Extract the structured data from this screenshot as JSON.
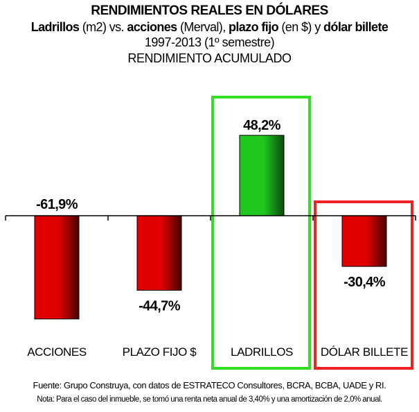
{
  "title": {
    "line1": "RENDIMIENTOS REALES EN DÓLARES",
    "line2_parts": [
      {
        "text": "Ladrillos",
        "bold": true
      },
      {
        "text": " (m2) vs. ",
        "bold": false
      },
      {
        "text": "acciones",
        "bold": true
      },
      {
        "text": " (Merval), ",
        "bold": false
      },
      {
        "text": "plazo fijo",
        "bold": true
      },
      {
        "text": " (en $) y ",
        "bold": false
      },
      {
        "text": "dólar billete",
        "bold": true
      }
    ],
    "line3": "1997-2013 (1º semestre)",
    "line4": "RENDIMIENTO ACUMULADO"
  },
  "chart_data": {
    "type": "bar",
    "categories": [
      "ACCIONES",
      "PLAZO FIJO $",
      "LADRILLOS",
      "DÓLAR BILLETE"
    ],
    "values": [
      -61.9,
      -44.7,
      48.2,
      -30.4
    ],
    "value_labels": [
      "-61,9%",
      "-44,7%",
      "48,2%",
      "-30,4%"
    ],
    "ylim": [
      -65,
      50
    ],
    "grid": false,
    "bar_colors": [
      "#e00000",
      "#e00000",
      "#1ec81e",
      "#e00000"
    ],
    "bar_dark_colors": [
      "#4a0000",
      "#4a0000",
      "#0a4a0a",
      "#4a0000"
    ],
    "highlights": [
      {
        "category": "LADRILLOS",
        "color": "#33dd22"
      },
      {
        "category": "DÓLAR BILLETE",
        "color": "#ee2222"
      }
    ]
  },
  "footer": {
    "source": "Fuente: Grupo Construya, con datos de ESTRATECO Consultores, BCRA, BCBA, UADE y RI.",
    "note": "Nota: Para el caso del inmueble, se tomó una renta neta anual de 3,40% y una amortización de 2,0% anual."
  }
}
